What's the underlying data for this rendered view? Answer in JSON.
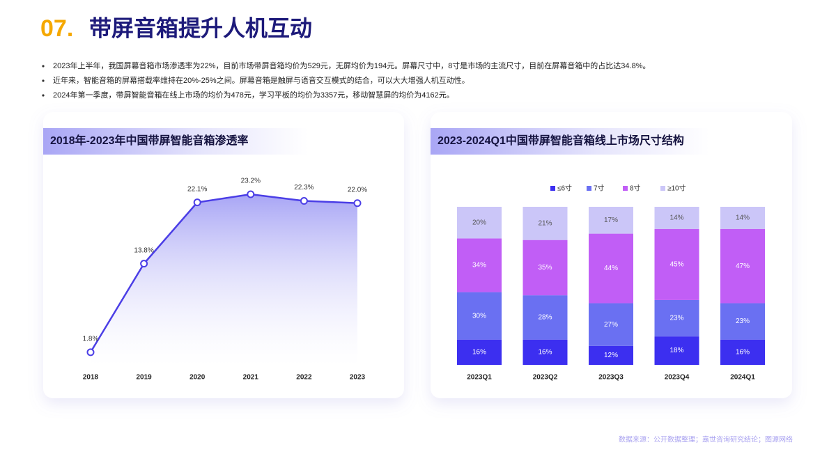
{
  "header": {
    "number": "07.",
    "title": "带屏音箱提升人机互动"
  },
  "bullets": [
    "2023年上半年，我国屏幕音箱市场渗透率为22%，目前市场带屏音箱均价为529元，无屏均价为194元。屏幕尺寸中，8寸是市场的主流尺寸，目前在屏幕音箱中的占比达34.8%。",
    "近年来，智能音箱的屏幕搭载率维持在20%-25%之间。屏幕音箱是触屏与语音交互模式的结合，可以大大增强人机互动性。",
    "2024年第一季度，带屏智能音箱在线上市场的均价为478元，学习平板的均价为3357元，移动智慧屏的均价为4162元。"
  ],
  "chart_data": [
    {
      "type": "line",
      "title": "2018年-2023年中国带屏智能音箱渗透率",
      "categories": [
        "2018",
        "2019",
        "2020",
        "2021",
        "2022",
        "2023"
      ],
      "values": [
        1.8,
        13.8,
        22.1,
        23.2,
        22.3,
        22.0
      ],
      "value_labels": [
        "1.8%",
        "13.8%",
        "22.1%",
        "23.2%",
        "22.3%",
        "22.0%"
      ],
      "color": "#4b3ee6"
    },
    {
      "type": "stacked_bar",
      "title": "2023-2024Q1中国带屏智能音箱线上市场尺寸结构",
      "categories": [
        "2023Q1",
        "2023Q2",
        "2023Q3",
        "2023Q4",
        "2024Q1"
      ],
      "legend": "top",
      "series": [
        {
          "name": "≤6寸",
          "color": "#3c2ff0",
          "values": [
            16,
            16,
            12,
            18,
            16
          ],
          "value_labels": [
            "16%",
            "16%",
            "12%",
            "18%",
            "16%"
          ]
        },
        {
          "name": "7寸",
          "color": "#6a70f2",
          "values": [
            30,
            28,
            27,
            23,
            23
          ],
          "value_labels": [
            "30%",
            "28%",
            "27%",
            "23%",
            "23%"
          ]
        },
        {
          "name": "8寸",
          "color": "#c15ef6",
          "values": [
            34,
            35,
            44,
            45,
            47
          ],
          "value_labels": [
            "34%",
            "35%",
            "44%",
            "45%",
            "47%"
          ]
        },
        {
          "name": "≥10寸",
          "color": "#cbc6f8",
          "values": [
            20,
            21,
            17,
            14,
            14
          ],
          "value_labels": [
            "20%",
            "21%",
            "17%",
            "14%",
            "14%"
          ]
        }
      ]
    }
  ],
  "source": "数据来源：公开数据整理；嘉世咨询研究结论；图源网络"
}
